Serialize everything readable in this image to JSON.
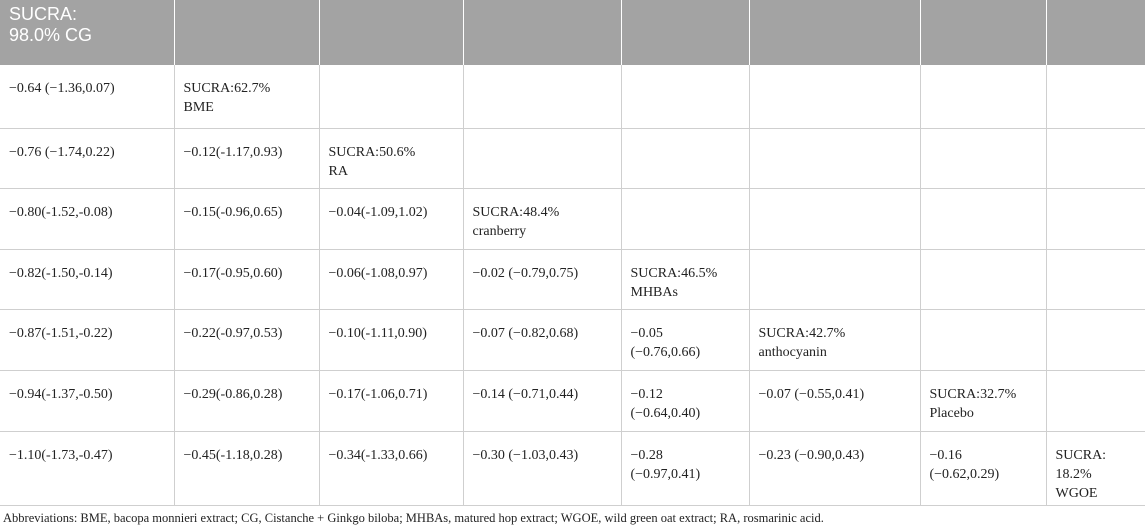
{
  "header": {
    "line1": "SUCRA:",
    "line2": "98.0% CG"
  },
  "rows": [
    [
      {
        "l1": "−0.64 (−1.36,0.07)"
      },
      {
        "l1": "SUCRA:62.7%",
        "l2": "BME"
      },
      {},
      {},
      {},
      {},
      {},
      {}
    ],
    [
      {
        "l1": "−0.76 (−1.74,0.22)"
      },
      {
        "l1": "−0.12(-1.17,0.93)"
      },
      {
        "l1": "SUCRA:50.6%",
        "l2": "RA"
      },
      {},
      {},
      {},
      {},
      {}
    ],
    [
      {
        "l1": "−0.80(-1.52,-0.08)"
      },
      {
        "l1": "−0.15(-0.96,0.65)"
      },
      {
        "l1": "−0.04(-1.09,1.02)"
      },
      {
        "l1": "SUCRA:48.4%",
        "l2": "cranberry"
      },
      {},
      {},
      {},
      {}
    ],
    [
      {
        "l1": "−0.82(-1.50,-0.14)"
      },
      {
        "l1": "−0.17(-0.95,0.60)"
      },
      {
        "l1": "−0.06(-1.08,0.97)"
      },
      {
        "l1": "−0.02 (−0.79,0.75)"
      },
      {
        "l1": "SUCRA:46.5%",
        "l2": "MHBAs"
      },
      {},
      {},
      {}
    ],
    [
      {
        "l1": "−0.87(-1.51,-0.22)"
      },
      {
        "l1": "−0.22(-0.97,0.53)"
      },
      {
        "l1": "−0.10(-1.11,0.90)"
      },
      {
        "l1": "−0.07 (−0.82,0.68)"
      },
      {
        "l1": "−0.05",
        "l2": "(−0.76,0.66)"
      },
      {
        "l1": "SUCRA:42.7%",
        "l2": "anthocyanin"
      },
      {},
      {}
    ],
    [
      {
        "l1": "−0.94(-1.37,-0.50)"
      },
      {
        "l1": "−0.29(-0.86,0.28)"
      },
      {
        "l1": "−0.17(-1.06,0.71)"
      },
      {
        "l1": "−0.14 (−0.71,0.44)"
      },
      {
        "l1": "−0.12",
        "l2": "(−0.64,0.40)"
      },
      {
        "l1": "−0.07 (−0.55,0.41)"
      },
      {
        "l1": "SUCRA:32.7%",
        "l2": "Placebo"
      },
      {}
    ],
    [
      {
        "l1": "−1.10(-1.73,-0.47)"
      },
      {
        "l1": "−0.45(-1.18,0.28)"
      },
      {
        "l1": "−0.34(-1.33,0.66)"
      },
      {
        "l1": "−0.30 (−1.03,0.43)"
      },
      {
        "l1": "−0.28",
        "l2": "(−0.97,0.41)"
      },
      {
        "l1": "−0.23 (−0.90,0.43)"
      },
      {
        "l1": "−0.16",
        "l2": "(−0.62,0.29)"
      },
      {
        "l1": "SUCRA:",
        "l2": "18.2%",
        "l3": "WGOE"
      }
    ]
  ],
  "footnote": "Abbreviations: BME, bacopa monnieri extract; CG, Cistanche + Ginkgo biloba; MHBAs, matured hop extract; WGOE, wild green oat extract; RA, rosmarinic acid."
}
